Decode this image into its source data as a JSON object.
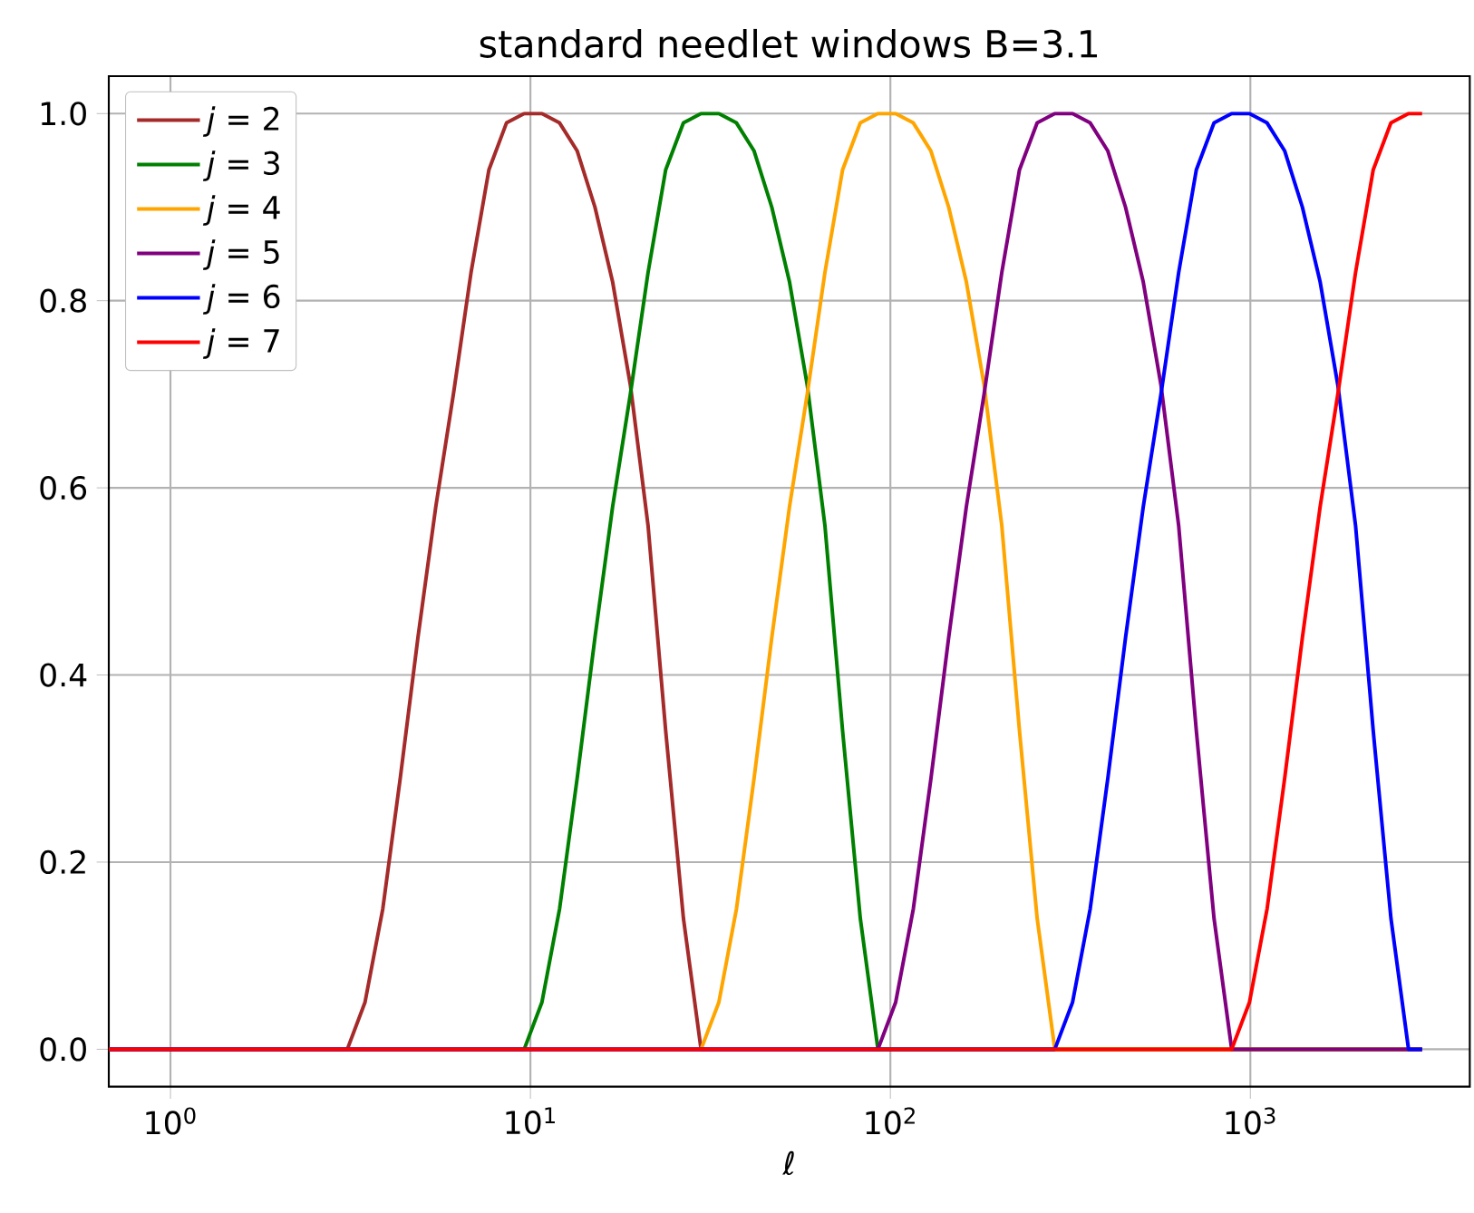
{
  "chart_data": {
    "type": "line",
    "title": "standard needlet windows B=3.1",
    "xlabel": "ℓ",
    "log": "x",
    "grid": true,
    "legend": "top left",
    "line_style": "solid",
    "marker": "none",
    "xlim": [
      0.674,
      4070
    ],
    "ylim": [
      -0.04,
      1.04
    ],
    "xticks": [
      {
        "value": 1,
        "label": "10$^{0}$"
      },
      {
        "value": 10,
        "label": "10$^{1}$"
      },
      {
        "value": 100,
        "label": "10$^{2}$"
      },
      {
        "value": 1000,
        "label": "10$^{3}$"
      }
    ],
    "yticks": [
      {
        "value": 0,
        "label": "0.0"
      },
      {
        "value": 0.2,
        "label": "0.2"
      },
      {
        "value": 0.4,
        "label": "0.4"
      },
      {
        "value": 0.6,
        "label": "0.6"
      },
      {
        "value": 0.8,
        "label": "0.8"
      },
      {
        "value": 1,
        "label": "1.0"
      }
    ],
    "series": [
      {
        "name": "*j* = 2",
        "color": "#a52a2a",
        "x": [
          0.674,
          3.1,
          3.47,
          3.89,
          4.35,
          4.87,
          5.46,
          6.11,
          6.84,
          7.67,
          8.58,
          9.61,
          10.76,
          12.05,
          13.49,
          15.11,
          16.92,
          18.95,
          21.22,
          23.76,
          26.61,
          29.79,
          3000
        ],
        "values": [
          0,
          0,
          0.05,
          0.15,
          0.29,
          0.44,
          0.58,
          0.7,
          0.83,
          0.94,
          0.99,
          1.0,
          1.0,
          0.99,
          0.96,
          0.9,
          0.82,
          0.71,
          0.56,
          0.34,
          0.14,
          0,
          0
        ]
      },
      {
        "name": "*j* = 3",
        "color": "#008000",
        "x": [
          0.674,
          9.61,
          10.76,
          12.05,
          13.49,
          15.11,
          16.92,
          18.95,
          21.22,
          23.76,
          26.61,
          29.79,
          33.37,
          37.36,
          41.82,
          46.83,
          52.46,
          58.75,
          65.78,
          73.67,
          82.49,
          92.35,
          3000
        ],
        "values": [
          0,
          0,
          0.05,
          0.15,
          0.29,
          0.44,
          0.58,
          0.7,
          0.83,
          0.94,
          0.99,
          1.0,
          1.0,
          0.99,
          0.96,
          0.9,
          0.82,
          0.71,
          0.56,
          0.34,
          0.14,
          0,
          0
        ]
      },
      {
        "name": "*j* = 4",
        "color": "#ffa500",
        "x": [
          0.674,
          29.79,
          33.37,
          37.36,
          41.83,
          46.83,
          52.46,
          58.75,
          65.78,
          73.67,
          82.49,
          92.35,
          103.4,
          115.8,
          129.6,
          145.2,
          162.6,
          182.1,
          203.9,
          228.4,
          255.7,
          286.3,
          3000
        ],
        "values": [
          0,
          0,
          0.05,
          0.15,
          0.29,
          0.44,
          0.58,
          0.7,
          0.83,
          0.94,
          0.99,
          1.0,
          1.0,
          0.99,
          0.96,
          0.9,
          0.82,
          0.71,
          0.56,
          0.34,
          0.14,
          0,
          0
        ]
      },
      {
        "name": "*j* = 5",
        "color": "#800080",
        "x": [
          0.674,
          92.35,
          103.4,
          115.8,
          129.7,
          145.2,
          162.6,
          182.1,
          203.9,
          228.4,
          255.7,
          286.3,
          320.6,
          359.0,
          401.9,
          450.0,
          504.1,
          564.5,
          632.1,
          708.0,
          792.7,
          887.5,
          3000
        ],
        "values": [
          0,
          0,
          0.05,
          0.15,
          0.29,
          0.44,
          0.58,
          0.7,
          0.83,
          0.94,
          0.99,
          1.0,
          1.0,
          0.99,
          0.96,
          0.9,
          0.82,
          0.71,
          0.56,
          0.34,
          0.14,
          0,
          0
        ]
      },
      {
        "name": "*j* = 6",
        "color": "#0000ff",
        "x": [
          0.674,
          286.3,
          320.6,
          359.0,
          402.0,
          450.1,
          504.2,
          564.6,
          632.2,
          708.0,
          792.8,
          887.5,
          994.0,
          1112.9,
          1246,
          1395,
          1563,
          1750,
          1960,
          2195,
          2458,
          2751,
          3000
        ],
        "values": [
          0,
          0,
          0.05,
          0.15,
          0.29,
          0.44,
          0.58,
          0.7,
          0.83,
          0.94,
          0.99,
          1.0,
          1.0,
          0.99,
          0.96,
          0.9,
          0.82,
          0.71,
          0.56,
          0.34,
          0.14,
          0,
          0
        ]
      },
      {
        "name": "*j* = 7",
        "color": "#ff0000",
        "x": [
          0.674,
          887.5,
          994,
          1113,
          1246,
          1395,
          1563,
          1750,
          1960,
          2195,
          2458,
          2751,
          3000
        ],
        "values": [
          0,
          0,
          0.05,
          0.15,
          0.29,
          0.44,
          0.58,
          0.7,
          0.83,
          0.94,
          0.99,
          1.0,
          1.0
        ]
      }
    ]
  }
}
